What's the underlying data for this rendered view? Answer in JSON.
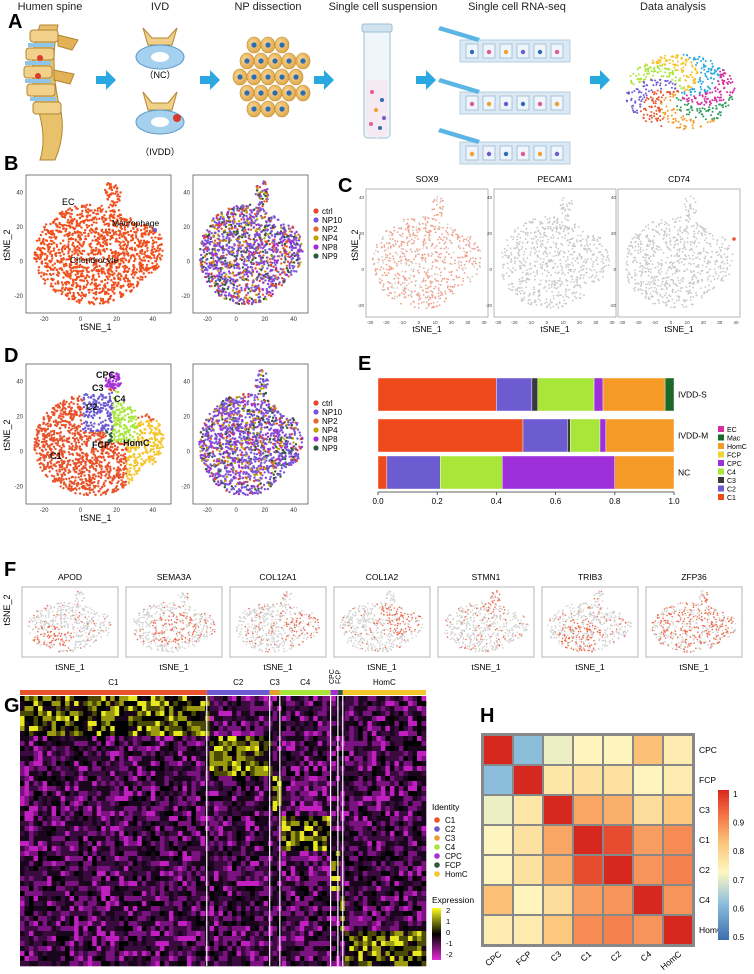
{
  "panels": {
    "A": "A",
    "B": "B",
    "C": "C",
    "D": "D",
    "E": "E",
    "F": "F",
    "G": "G",
    "H": "H"
  },
  "workflow_steps": [
    "Humen spine",
    "IVD",
    "NP dissection",
    "Single cell suspension",
    "Single cell RNA-seq",
    "Data analysis"
  ],
  "ivd_labels": {
    "nc": "（NC）",
    "ivdd": "（IVDD）"
  },
  "axis": {
    "tsne1": "tSNE_1",
    "tsne2": "tSNE_2"
  },
  "panel_b": {
    "cluster_labels": [
      "EC",
      "Macrophage",
      "Chondrocyte"
    ],
    "legend": [
      "ctrl",
      "NP10",
      "NP2",
      "NP4",
      "NP8",
      "NP9"
    ],
    "legend_colors": [
      "#e8452b",
      "#7a55d9",
      "#e36a26",
      "#c3a000",
      "#a52bd9",
      "#2e5a3d"
    ],
    "x_ticks": [
      "-20",
      "0",
      "20",
      "40"
    ],
    "y_ticks": [
      "40",
      "20",
      "0",
      "-20"
    ]
  },
  "panel_c": {
    "genes": [
      "SOX9",
      "PECAM1",
      "CD74"
    ],
    "x_ticks": [
      "-30",
      "-20",
      "-10",
      "0",
      "10",
      "20",
      "30",
      "40"
    ],
    "y_ticks": [
      "40",
      "20",
      "0",
      "-20"
    ]
  },
  "panel_d": {
    "cluster_labels": [
      "CPC",
      "C3",
      "C2",
      "C4",
      "FCP",
      "HomC",
      "C1"
    ],
    "legend": [
      "ctrl",
      "NP10",
      "NP2",
      "NP4",
      "NP8",
      "NP9"
    ],
    "x_ticks": [
      "-20",
      "0",
      "20",
      "40"
    ],
    "y_ticks": [
      "40",
      "20",
      "0",
      "-20"
    ]
  },
  "panel_f": {
    "genes": [
      "APOD",
      "SEMA3A",
      "COL12A1",
      "COL1A2",
      "STMN1",
      "TRIB3",
      "ZFP36"
    ]
  },
  "panel_g": {
    "cluster_labels": [
      "C1",
      "C2",
      "C3",
      "C4",
      "CPC",
      "FCP",
      "HomC"
    ],
    "identity_title": "Identity",
    "identity_legend": [
      "C1",
      "C2",
      "C3",
      "C4",
      "CPC",
      "FCP",
      "HomC"
    ],
    "identity_colors": [
      "#e8532b",
      "#6c5bd1",
      "#e69f2d",
      "#a8e63a",
      "#a530d5",
      "#2e5a3d",
      "#f5c52b"
    ],
    "expression_title": "Expression",
    "expression_ticks": [
      "2",
      "1",
      "0",
      "-1",
      "-2"
    ]
  },
  "chart_data": [
    {
      "type": "bar",
      "orientation": "horizontal-stacked",
      "title": "",
      "categories": [
        "IVDD-S",
        "IVDD-M",
        "NC"
      ],
      "legend": [
        "EC",
        "Mac",
        "HomC",
        "FCP",
        "CPC",
        "C4",
        "C3",
        "C2",
        "C1"
      ],
      "legend_colors": [
        "#d62ea0",
        "#1b6a2a",
        "#f59a26",
        "#f0d237",
        "#9d30d9",
        "#a8e63a",
        "#3a3a3a",
        "#6c5bd1",
        "#ee4a1c"
      ],
      "series": [
        {
          "name": "C1",
          "color": "#ee4a1c",
          "values": [
            0.4,
            0.49,
            0.03
          ]
        },
        {
          "name": "C2",
          "color": "#6c5bd1",
          "values": [
            0.12,
            0.15,
            0.18
          ]
        },
        {
          "name": "C3",
          "color": "#3a3a3a",
          "values": [
            0.02,
            0.01,
            0.0
          ]
        },
        {
          "name": "C4",
          "color": "#a8e63a",
          "values": [
            0.19,
            0.1,
            0.21
          ]
        },
        {
          "name": "CPC",
          "color": "#9d30d9",
          "values": [
            0.03,
            0.02,
            0.38
          ]
        },
        {
          "name": "FCP",
          "color": "#f0d237",
          "values": [
            0.0,
            0.0,
            0.0
          ]
        },
        {
          "name": "HomC",
          "color": "#f59a26",
          "values": [
            0.21,
            0.23,
            0.2
          ]
        },
        {
          "name": "Mac",
          "color": "#1b6a2a",
          "values": [
            0.03,
            0.0,
            0.0
          ]
        },
        {
          "name": "EC",
          "color": "#d62ea0",
          "values": [
            0.0,
            0.0,
            0.0
          ]
        }
      ],
      "xlim": [
        0,
        1.0
      ],
      "x_ticks": [
        "0.0",
        "0.2",
        "0.4",
        "0.6",
        "0.8",
        "1.0"
      ]
    },
    {
      "type": "heatmap",
      "title": "",
      "rows": [
        "CPC",
        "FCP",
        "C3",
        "C1",
        "C2",
        "C4",
        "HomC"
      ],
      "columns": [
        "CPC",
        "FCP",
        "C3",
        "C1",
        "C2",
        "C4",
        "HomC"
      ],
      "values": [
        [
          1.0,
          0.62,
          0.71,
          0.73,
          0.73,
          0.83,
          0.75
        ],
        [
          0.62,
          1.0,
          0.76,
          0.77,
          0.77,
          0.73,
          0.75
        ],
        [
          0.71,
          0.76,
          1.0,
          0.86,
          0.85,
          0.78,
          0.82
        ],
        [
          0.73,
          0.77,
          0.86,
          1.0,
          0.96,
          0.87,
          0.89
        ],
        [
          0.73,
          0.77,
          0.85,
          0.96,
          1.0,
          0.88,
          0.9
        ],
        [
          0.83,
          0.73,
          0.78,
          0.87,
          0.88,
          1.0,
          0.88
        ],
        [
          0.75,
          0.75,
          0.82,
          0.89,
          0.9,
          0.88,
          1.0
        ]
      ],
      "colorbar_ticks": [
        "1",
        "0.9",
        "0.8",
        "0.7",
        "0.6",
        "0.5"
      ],
      "vmin": 0.5,
      "vmax": 1.0
    }
  ]
}
